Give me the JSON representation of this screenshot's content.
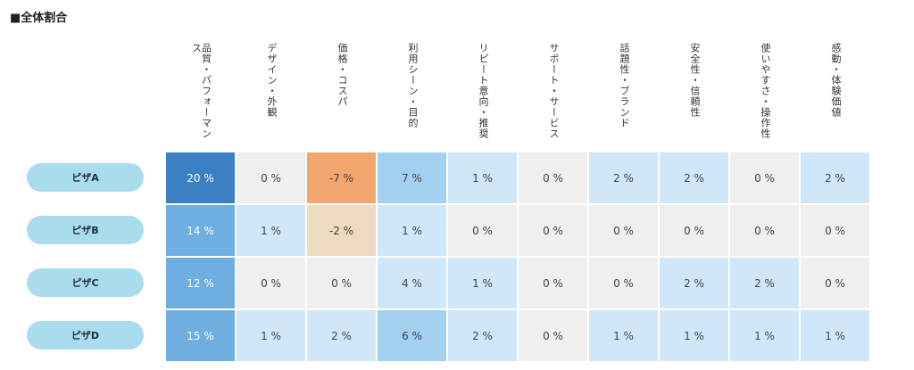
{
  "title": "■全体割合",
  "chart_data": {
    "type": "heatmap",
    "columns": [
      "品質・パフォーマンス",
      "デザイン・外観",
      "価格・コスパ",
      "利用シーン・目的",
      "リピート意向・推奨",
      "サポート・サービス",
      "話題性・ブランド",
      "安全性・信頼性",
      "使いやすさ・操作性",
      "感動・体験価値"
    ],
    "rows": [
      {
        "name": "ピザA",
        "values": [
          20,
          0,
          -7,
          7,
          1,
          0,
          2,
          2,
          0,
          2
        ]
      },
      {
        "name": "ピザB",
        "values": [
          14,
          1,
          -2,
          1,
          0,
          0,
          0,
          0,
          0,
          0
        ]
      },
      {
        "name": "ピザC",
        "values": [
          12,
          0,
          0,
          4,
          1,
          0,
          0,
          2,
          2,
          0
        ]
      },
      {
        "name": "ピザD",
        "values": [
          15,
          1,
          2,
          6,
          2,
          0,
          1,
          1,
          1,
          1
        ]
      }
    ],
    "unit": "%"
  },
  "colors": {
    "strong_positive": "#3a80c3",
    "positive_high": "#6eaee0",
    "positive_mid": "#a2d0f1",
    "positive_low": "#cfe7f8",
    "zero": "#efefef",
    "negative_low": "#eddac0",
    "negative_high": "#f2a76e",
    "label_bg": "#a9dced"
  }
}
